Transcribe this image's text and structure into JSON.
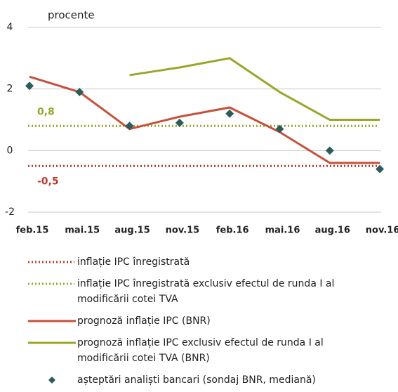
{
  "chart_data": {
    "type": "line",
    "y_label": "procente",
    "categories": [
      "feb.15",
      "mai.15",
      "aug.15",
      "nov.15",
      "feb.16",
      "mai.16",
      "aug.16",
      "nov.16"
    ],
    "ylim": [
      -2,
      4
    ],
    "yticks": [
      -2,
      0,
      2,
      4
    ],
    "grid": true,
    "reference_lines": [
      {
        "name": "inflație IPC înregistrată",
        "value": -0.5,
        "value_label": "-0,5",
        "color": "#b83a2c"
      },
      {
        "name": "inflație IPC înregistrată exclusiv efectul de runda I al modificării cotei TVA",
        "value": 0.8,
        "value_label": "0,8",
        "color": "#9aa52a"
      }
    ],
    "series": [
      {
        "name": "prognoză inflație IPC (BNR)",
        "color": "#c8503a",
        "style": "line",
        "values": [
          2.4,
          1.9,
          0.7,
          1.1,
          1.4,
          0.6,
          -0.4,
          -0.4
        ]
      },
      {
        "name": "prognoză inflație IPC exclusiv efectul de runda I al modificării cotei TVA (BNR)",
        "color": "#9aa52a",
        "style": "line",
        "values": [
          null,
          null,
          2.45,
          2.7,
          3.0,
          1.9,
          1.0,
          1.0
        ]
      },
      {
        "name": "așteptări analiști bancari (sondaj BNR, mediană)",
        "color": "#2e5c5c",
        "style": "marker",
        "values": [
          2.1,
          1.9,
          0.8,
          0.9,
          1.2,
          0.7,
          0.0,
          -0.6
        ]
      }
    ]
  }
}
